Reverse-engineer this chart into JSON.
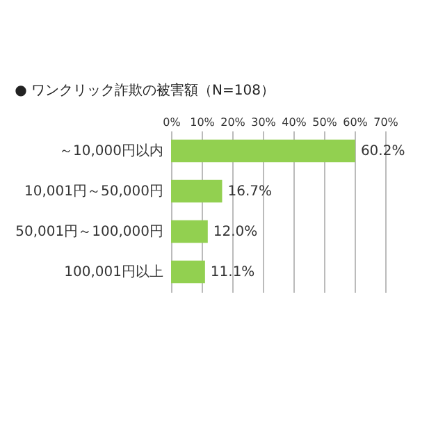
{
  "chart_data": {
    "type": "bar",
    "orientation": "horizontal",
    "title": "● ワンクリック詐欺の被害額（N=108）",
    "categories": [
      "～10,000円以内",
      "10,001円～50,000円",
      "50,001円～100,000円",
      "100,001円以上"
    ],
    "values": [
      60.2,
      16.7,
      12.0,
      11.1
    ],
    "value_labels": [
      "60.2%",
      "16.7%",
      "12.0%",
      "11.1%"
    ],
    "color": "#92d050",
    "xlim": [
      0,
      70
    ],
    "xticks": [
      {
        "value": 0,
        "label": "0%"
      },
      {
        "value": 10,
        "label": "10%"
      },
      {
        "value": 20,
        "label": "20%"
      },
      {
        "value": 30,
        "label": "30%"
      },
      {
        "value": 40,
        "label": "40%"
      },
      {
        "value": 50,
        "label": "50%"
      },
      {
        "value": 60,
        "label": "60%"
      },
      {
        "value": 70,
        "label": "70%"
      }
    ],
    "grid": "x"
  }
}
